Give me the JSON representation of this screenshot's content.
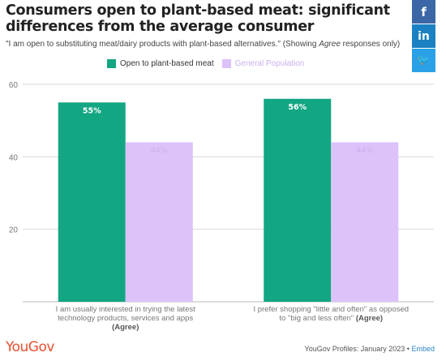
{
  "page": {
    "title": "Consumers open to plant-based meat: significant differences from the average consumer",
    "subtitle_pre": "\"I am open to substituting meat/dairy products with plant-based alternatives.\" (Showing ",
    "subtitle_em": "Agree",
    "subtitle_post": " responses only)",
    "social": {
      "facebook": "f",
      "linkedin": "in",
      "twitter": "🐦"
    },
    "footer": {
      "brand": "YouGov",
      "source": "YouGov Profiles: January 2023 •",
      "embed": "Embed"
    }
  },
  "colors": {
    "open": "#13a683",
    "general": "#dcc2f9",
    "gridline": "#d9d9d9",
    "axis_text": "#777777"
  },
  "chart_data": {
    "type": "bar",
    "categories": [
      {
        "lines": [
          "I am usually interested in trying the latest",
          "technology products, services and apps"
        ],
        "bold": "(Agree)"
      },
      {
        "lines": [
          "I prefer shopping \"little and often\" as opposed",
          "to \"big and less often\""
        ],
        "bold": "(Agree)"
      }
    ],
    "series": [
      {
        "name": "Open to plant-based meat",
        "values": [
          55,
          56
        ],
        "labels": [
          "55%",
          "56%"
        ]
      },
      {
        "name": "General Population",
        "values": [
          44,
          44
        ],
        "labels": [
          "44%",
          "44%"
        ]
      }
    ],
    "yticks": [
      20,
      40,
      60
    ],
    "ylim": [
      0,
      62
    ],
    "grid": true,
    "legend_position": "top"
  }
}
